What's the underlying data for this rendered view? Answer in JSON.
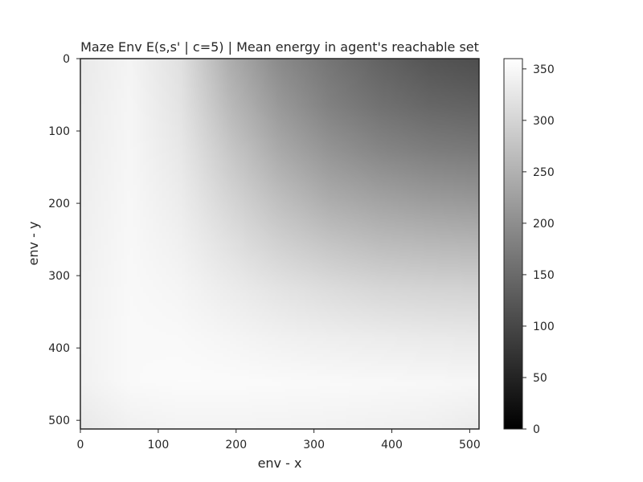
{
  "chart_data": {
    "type": "heatmap",
    "title": "Maze Env E(s,s' | c=5) | Mean energy in agent's reachable set",
    "xlabel": "env - x",
    "ylabel": "env - y",
    "xlim": [
      0,
      512
    ],
    "ylim": [
      512,
      0
    ],
    "x_ticks": [
      0,
      100,
      200,
      300,
      400,
      500
    ],
    "y_ticks": [
      0,
      100,
      200,
      300,
      400,
      500
    ],
    "colormap": "gray",
    "colorbar": {
      "range": [
        0,
        360
      ],
      "ticks": [
        0,
        50,
        100,
        150,
        200,
        250,
        300,
        350
      ]
    },
    "grid": false,
    "x": [
      0,
      64,
      128,
      192,
      256,
      320,
      384,
      448,
      512
    ],
    "y": [
      0,
      64,
      128,
      192,
      256,
      320,
      384,
      448,
      512
    ],
    "z": [
      [
        330,
        345,
        318,
        245,
        195,
        165,
        140,
        120,
        110
      ],
      [
        332,
        347,
        322,
        262,
        215,
        182,
        160,
        145,
        138
      ],
      [
        334,
        348,
        328,
        282,
        240,
        210,
        190,
        178,
        172
      ],
      [
        336,
        349,
        334,
        300,
        268,
        242,
        228,
        218,
        212
      ],
      [
        338,
        350,
        340,
        318,
        295,
        278,
        266,
        260,
        256
      ],
      [
        340,
        351,
        346,
        334,
        322,
        312,
        304,
        300,
        298
      ],
      [
        341,
        352,
        351,
        346,
        340,
        336,
        333,
        330,
        328
      ],
      [
        340,
        352,
        354,
        354,
        353,
        352,
        351,
        350,
        348
      ],
      [
        328,
        340,
        344,
        344,
        343,
        342,
        340,
        338,
        332
      ]
    ]
  }
}
